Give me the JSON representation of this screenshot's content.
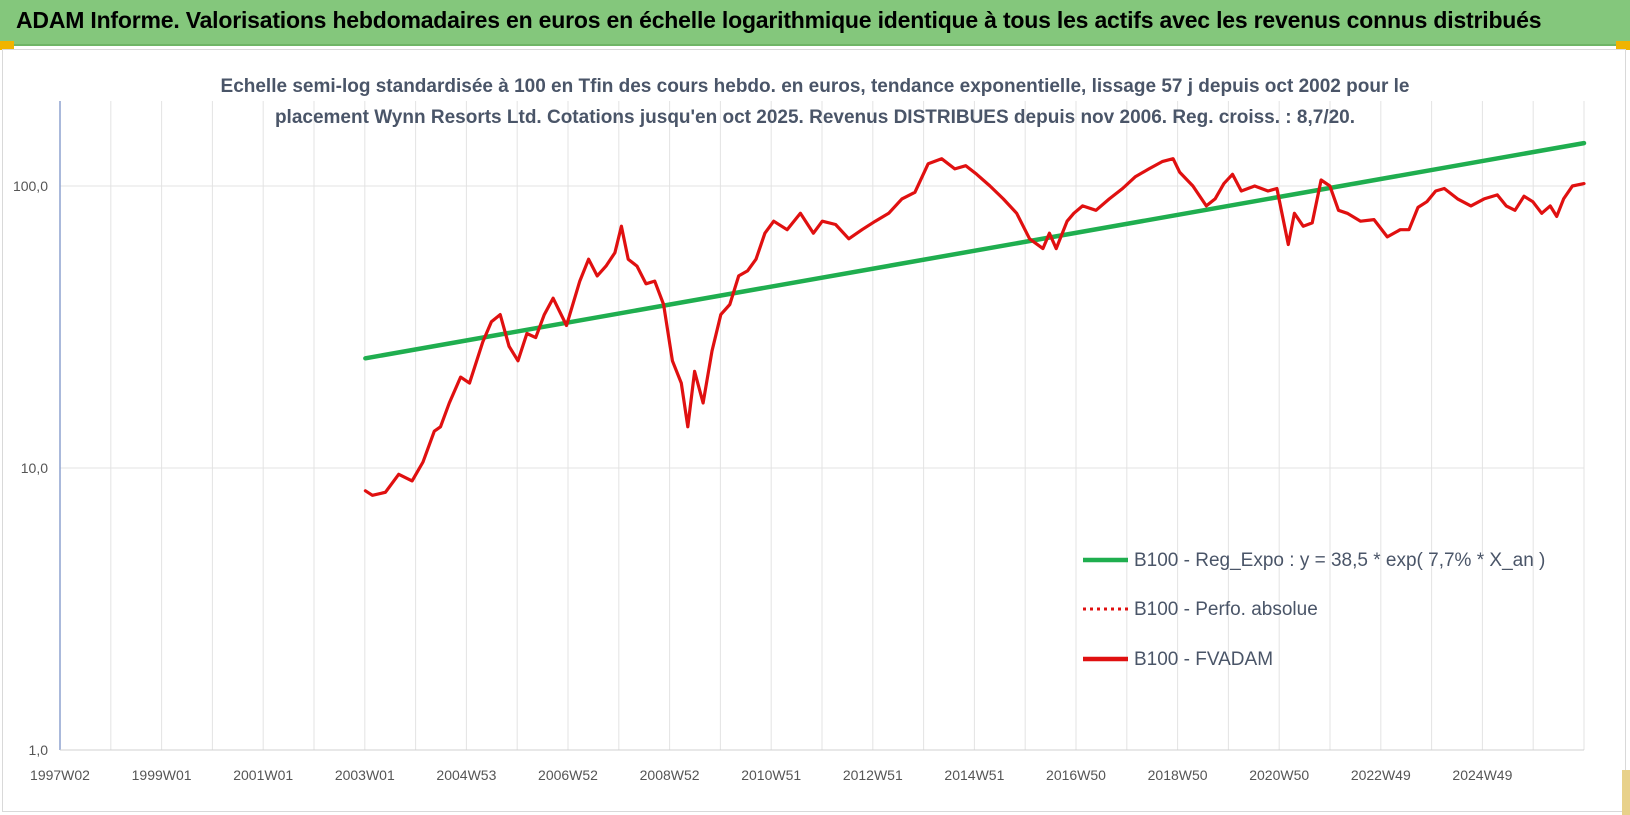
{
  "header": {
    "title": "ADAM Informe. Valorisations hebdomadaires en euros en échelle logarithmique identique à tous les actifs avec les revenus connus distribués"
  },
  "chart_data": {
    "type": "line",
    "title_lines": [
      "Echelle semi-log standardisée à 100 en Tfin des cours hebdo. en euros, tendance exponentielle, lissage 57 j depuis oct 2002 pour le",
      "placement Wynn Resorts Ltd. Cotations jusqu'en oct 2025. Revenus DISTRIBUES depuis nov 2006. Reg. croiss. : 8,7/20."
    ],
    "x_axis": {
      "type": "date",
      "range": [
        "1997-01-06",
        "2025-10-20"
      ],
      "tick_labels": [
        "1997W02",
        "1999W01",
        "2001W01",
        "2003W01",
        "2004W53",
        "2006W52",
        "2008W52",
        "2010W51",
        "2012W51",
        "2014W51",
        "2016W50",
        "2018W50",
        "2020W50",
        "2022W49",
        "2024W49"
      ],
      "gridlines": true
    },
    "y_axis": {
      "scale": "log",
      "range": [
        1,
        200
      ],
      "tick_labels": [
        "1,0",
        "10,0",
        "100,0"
      ],
      "gridlines": true
    },
    "legend_position": "bottom-right",
    "series": [
      {
        "name": "B100 - Reg_Expo : y = 38,5 * exp( 7,7% *  X_an )",
        "color": "#1fae4f",
        "style": "solid",
        "x": [
          "2002-10-14",
          "2025-10-20"
        ],
        "y": [
          24.5,
          142
        ]
      },
      {
        "name": "B100 - Perfo. absolue",
        "color": "#e01010",
        "style": "dotted",
        "x": [],
        "y": []
      },
      {
        "name": "B100 - FVADAM",
        "color": "#e01010",
        "style": "solid",
        "x": [
          "2002-10-14",
          "2002-12-01",
          "2003-03-01",
          "2003-06-01",
          "2003-09-01",
          "2003-11-15",
          "2004-02-01",
          "2004-03-15",
          "2004-05-15",
          "2004-08-01",
          "2004-10-01",
          "2005-01-01",
          "2005-03-01",
          "2005-05-01",
          "2005-07-01",
          "2005-09-01",
          "2005-11-01",
          "2006-01-01",
          "2006-03-01",
          "2006-05-01",
          "2006-08-01",
          "2006-11-01",
          "2007-01-01",
          "2007-03-01",
          "2007-05-01",
          "2007-07-01",
          "2007-08-15",
          "2007-10-01",
          "2007-12-01",
          "2008-02-01",
          "2008-04-01",
          "2008-06-01",
          "2008-08-01",
          "2008-10-01",
          "2008-11-15",
          "2009-01-01",
          "2009-03-01",
          "2009-05-01",
          "2009-07-01",
          "2009-09-01",
          "2009-11-01",
          "2010-01-01",
          "2010-03-01",
          "2010-05-01",
          "2010-07-01",
          "2010-10-01",
          "2011-01-01",
          "2011-04-01",
          "2011-06-01",
          "2011-09-01",
          "2011-12-01",
          "2012-03-01",
          "2012-06-01",
          "2012-09-01",
          "2012-12-01",
          "2013-03-01",
          "2013-06-01",
          "2013-09-01",
          "2013-12-01",
          "2014-02-15",
          "2014-05-01",
          "2014-08-01",
          "2014-11-01",
          "2015-02-01",
          "2015-05-01",
          "2015-08-01",
          "2015-09-15",
          "2015-11-01",
          "2016-01-15",
          "2016-03-01",
          "2016-05-01",
          "2016-08-01",
          "2016-11-01",
          "2017-02-01",
          "2017-05-01",
          "2017-08-01",
          "2017-11-01",
          "2018-01-15",
          "2018-03-01",
          "2018-06-01",
          "2018-09-01",
          "2018-11-01",
          "2019-01-01",
          "2019-03-01",
          "2019-05-01",
          "2019-08-01",
          "2019-11-01",
          "2020-01-01",
          "2020-03-20",
          "2020-05-01",
          "2020-07-01",
          "2020-09-01",
          "2020-11-01",
          "2021-01-01",
          "2021-03-01",
          "2021-05-01",
          "2021-08-01",
          "2021-11-01",
          "2022-02-01",
          "2022-05-01",
          "2022-07-01",
          "2022-09-01",
          "2022-11-01",
          "2023-01-01",
          "2023-03-01",
          "2023-06-01",
          "2023-09-01",
          "2023-12-01",
          "2024-03-01",
          "2024-05-01",
          "2024-07-01",
          "2024-09-01",
          "2024-11-01",
          "2025-01-01",
          "2025-03-01",
          "2025-04-15",
          "2025-06-01",
          "2025-08-01",
          "2025-10-20"
        ],
        "y": [
          8.3,
          8.0,
          8.2,
          9.5,
          9.0,
          10.5,
          13.5,
          14,
          17,
          21,
          20,
          28,
          33,
          35,
          27,
          24,
          30,
          29,
          35,
          40,
          32,
          46,
          55,
          48,
          52,
          58,
          72,
          55,
          52,
          45,
          46,
          38,
          24,
          20,
          14,
          22,
          17,
          26,
          35,
          38,
          48,
          50,
          55,
          68,
          75,
          70,
          80,
          68,
          75,
          73,
          65,
          70,
          75,
          80,
          90,
          95,
          120,
          125,
          115,
          118,
          110,
          100,
          90,
          80,
          65,
          60,
          68,
          60,
          75,
          80,
          85,
          82,
          90,
          98,
          108,
          115,
          122,
          125,
          112,
          100,
          85,
          90,
          102,
          110,
          96,
          100,
          96,
          98,
          62,
          80,
          72,
          74,
          105,
          100,
          82,
          80,
          75,
          76,
          66,
          70,
          70,
          84,
          88,
          96,
          98,
          90,
          85,
          90,
          93,
          85,
          82,
          92,
          88,
          80,
          85,
          78,
          90,
          100,
          102
        ]
      }
    ]
  }
}
